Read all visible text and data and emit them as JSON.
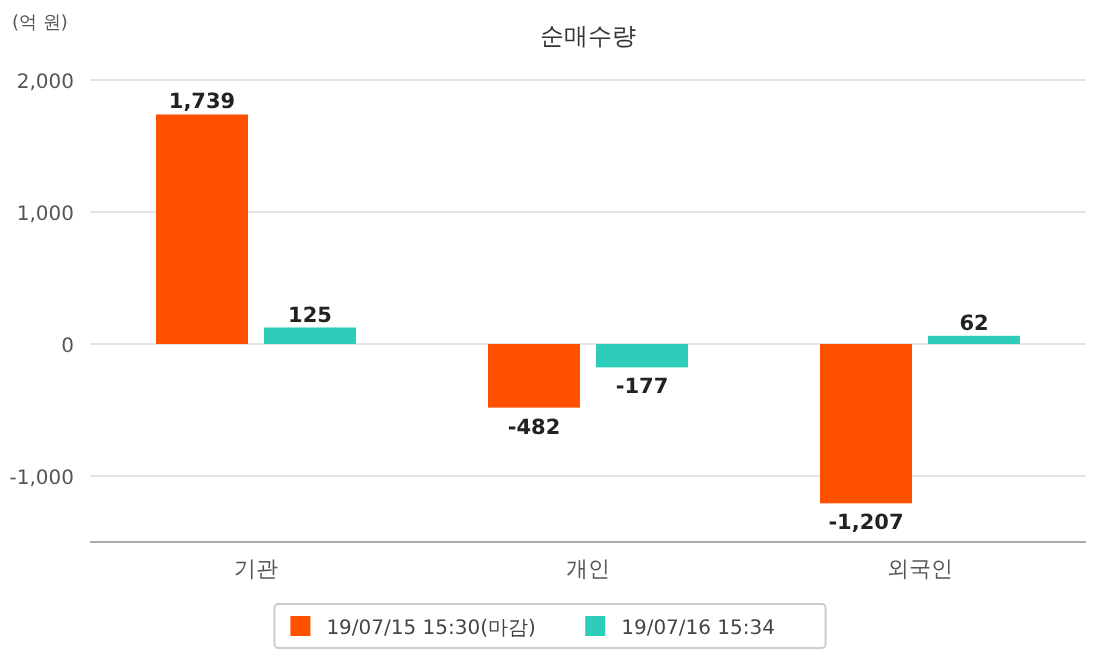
{
  "chart_data": {
    "type": "bar",
    "title": "순매수량",
    "ylabel": "(억 원)",
    "categories": [
      "기관",
      "개인",
      "외국인"
    ],
    "series": [
      {
        "name": "19/07/15 15:30(마감)",
        "color": "#ff5000",
        "values": [
          1739,
          -482,
          -1207
        ],
        "value_labels": [
          "1,739",
          "-482",
          "-1,207"
        ]
      },
      {
        "name": "19/07/16 15:34",
        "color": "#2dcdb9",
        "values": [
          125,
          -177,
          62
        ],
        "value_labels": [
          "125",
          "-177",
          "62"
        ]
      }
    ],
    "ylim": [
      -1500,
      2000
    ],
    "yticks": [
      {
        "value": 2000,
        "label": "2,000"
      },
      {
        "value": 1000,
        "label": "1,000"
      },
      0,
      {
        "value": -1000,
        "label": "-1,000"
      }
    ],
    "grid": "y",
    "legend": "bottom"
  }
}
